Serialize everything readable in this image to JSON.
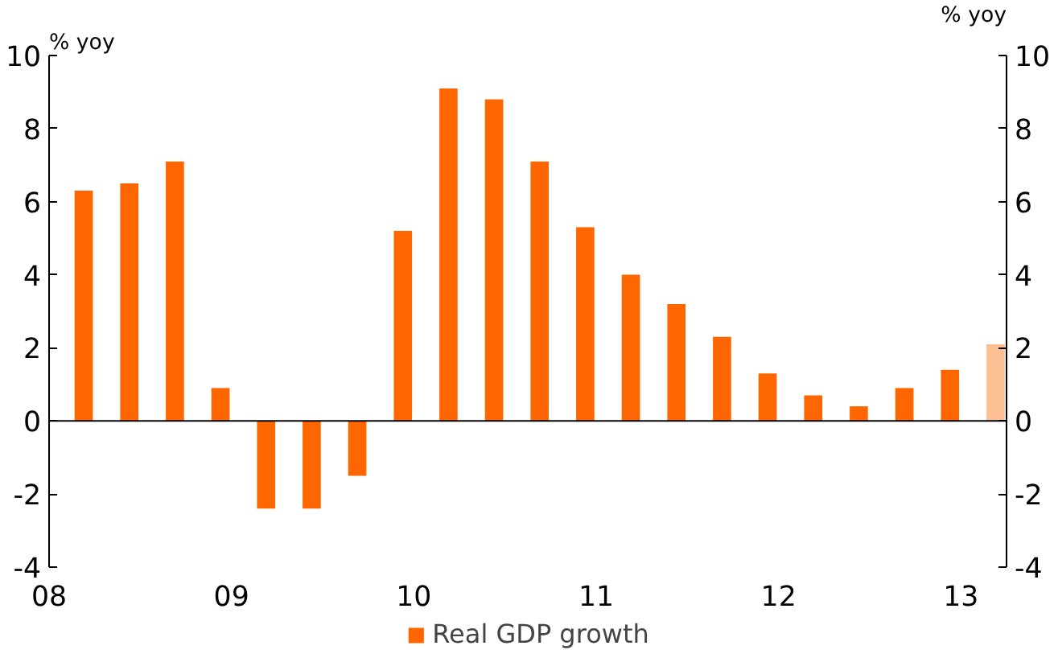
{
  "chart_data": {
    "type": "bar",
    "ylabel": "% yoy",
    "y2label": "% yoy",
    "x": [
      2008.19,
      2008.44,
      2008.69,
      2008.94,
      2009.19,
      2009.44,
      2009.69,
      2009.94,
      2010.19,
      2010.44,
      2010.69,
      2010.94,
      2011.19,
      2011.44,
      2011.69,
      2011.94,
      2012.19,
      2012.44,
      2012.69,
      2012.94,
      2013.19
    ],
    "series": [
      {
        "name": "Real GDP growth",
        "color": "#ff6600",
        "values": [
          6.3,
          6.5,
          7.1,
          0.9,
          -2.4,
          -2.4,
          -1.5,
          5.2,
          9.1,
          8.8,
          7.1,
          5.3,
          4.0,
          3.2,
          2.3,
          1.3,
          0.7,
          0.4,
          0.9,
          1.4,
          2.1
        ],
        "colors": [
          "#ff6600",
          "#ff6600",
          "#ff6600",
          "#ff6600",
          "#ff6600",
          "#ff6600",
          "#ff6600",
          "#ff6600",
          "#ff6600",
          "#ff6600",
          "#ff6600",
          "#ff6600",
          "#ff6600",
          "#ff6600",
          "#ff6600",
          "#ff6600",
          "#ff6600",
          "#ff6600",
          "#ff6600",
          "#ff6600",
          "#fdbf94"
        ]
      }
    ],
    "xlim": [
      2008,
      2013.25
    ],
    "xticks": [
      {
        "value": 2008,
        "label": "08"
      },
      {
        "value": 2009,
        "label": "09"
      },
      {
        "value": 2010,
        "label": "10"
      },
      {
        "value": 2011,
        "label": "11"
      },
      {
        "value": 2012,
        "label": "12"
      },
      {
        "value": 2013,
        "label": "13"
      }
    ],
    "ylim": [
      -4,
      10
    ],
    "yticks": [
      -4,
      -2,
      0,
      2,
      4,
      6,
      8,
      10
    ],
    "y2lim": [
      -4,
      10
    ],
    "y2ticks": [
      -4,
      -2,
      0,
      2,
      4,
      6,
      8,
      10
    ],
    "ref_lines": [
      {
        "axis": "y",
        "value": 0,
        "color": "#000000"
      }
    ],
    "legend": "bottom",
    "grid": false
  }
}
